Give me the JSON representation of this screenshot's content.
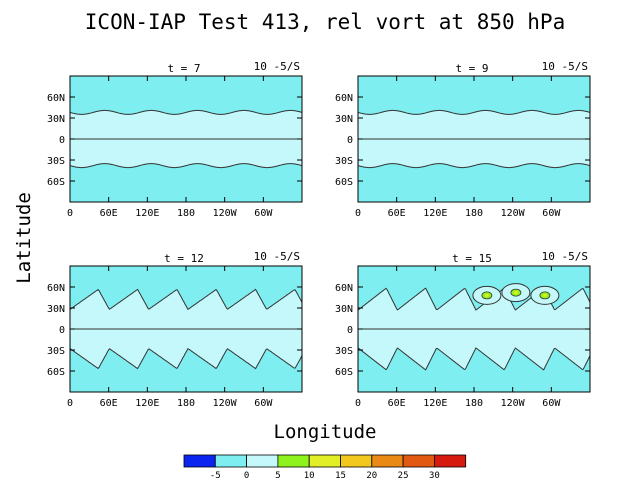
{
  "chart_data": {
    "type": "contour",
    "title": "ICON-IAP Test 413, rel vort at 850 hPa",
    "xlabel": "Longitude",
    "ylabel": "Latitude",
    "units": "10 -5/S",
    "x_ticks": [
      "0",
      "60E",
      "120E",
      "180",
      "120W",
      "60W"
    ],
    "y_ticks": [
      "60N",
      "30N",
      "0",
      "30S",
      "60S"
    ],
    "ylim": [
      -90,
      90
    ],
    "contour_levels": [
      -5,
      0,
      5,
      10,
      15,
      20,
      25,
      30
    ],
    "colorbar": {
      "labels": [
        "-5",
        "0",
        "5",
        "10",
        "15",
        "20",
        "25",
        "30"
      ],
      "colors": [
        "#0b24f0",
        "#7feef0",
        "#c4f8fa",
        "#8ef21c",
        "#e2ef26",
        "#f2c71e",
        "#ea8a14",
        "#e25a12",
        "#d61a10"
      ]
    },
    "panels": [
      {
        "time_label": "t = 7",
        "wave_amplitude": 2,
        "vortex_count": 0
      },
      {
        "time_label": "t = 9",
        "wave_amplitude": 2,
        "vortex_count": 0
      },
      {
        "time_label": "t = 12",
        "wave_amplitude": 20,
        "vortex_count": 0
      },
      {
        "time_label": "t = 15",
        "wave_amplitude": 22,
        "vortex_count": 3
      }
    ]
  }
}
